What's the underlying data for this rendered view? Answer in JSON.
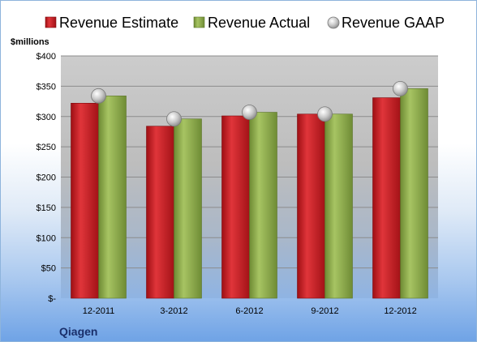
{
  "chart_data": {
    "type": "bar",
    "title": "",
    "company": "Qiagen",
    "unit_label": "$millions",
    "categories": [
      "12-2011",
      "3-2012",
      "6-2012",
      "9-2012",
      "12-2012"
    ],
    "series": [
      {
        "name": "Revenue Estimate",
        "kind": "bar",
        "color": "#c9181f",
        "values": [
          322,
          284,
          301,
          304,
          331
        ]
      },
      {
        "name": "Revenue Actual",
        "kind": "bar",
        "color": "#8fae4c",
        "values": [
          334,
          296,
          307,
          304,
          346
        ]
      },
      {
        "name": "Revenue GAAP",
        "kind": "marker",
        "color": "#b8b8b8",
        "values": [
          334,
          296,
          307,
          304,
          346
        ]
      }
    ],
    "ylim": [
      0,
      400
    ],
    "yticks": [
      0,
      50,
      100,
      150,
      200,
      250,
      300,
      350,
      400
    ],
    "ytick_labels": [
      "$-",
      "$50",
      "$100",
      "$150",
      "$200",
      "$250",
      "$300",
      "$350",
      "$400"
    ],
    "grid": true,
    "legend_position": "top"
  }
}
